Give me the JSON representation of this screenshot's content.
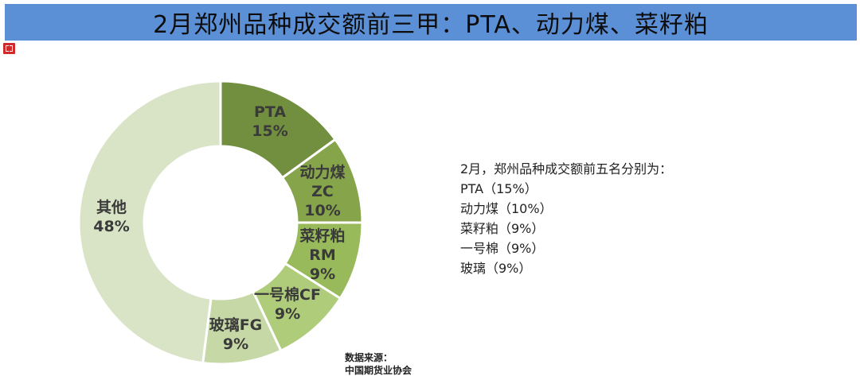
{
  "header": {
    "title": "2月郑州品种成交额前三甲：PTA、动力煤、菜籽粕"
  },
  "logo": {
    "icon": "brand-logo-icon",
    "color": "#d12a2a"
  },
  "chart_data": {
    "type": "pie",
    "donut": true,
    "slices": [
      {
        "label_lines": [
          "PTA",
          "15%"
        ],
        "value": 15,
        "color": "#728f3f"
      },
      {
        "label_lines": [
          "动力煤",
          "ZC",
          "10%"
        ],
        "value": 10,
        "color": "#86a54a"
      },
      {
        "label_lines": [
          "菜籽粕",
          "RM",
          "9%"
        ],
        "value": 9,
        "color": "#98ba5a"
      },
      {
        "label_lines": [
          "一号棉CF",
          "9%"
        ],
        "value": 9,
        "color": "#afcc7a"
      },
      {
        "label_lines": [
          "玻璃FG",
          "9%"
        ],
        "value": 9,
        "color": "#c6d8a6"
      },
      {
        "label_lines": [
          "其他",
          "48%"
        ],
        "value": 48,
        "color": "#d9e4c7"
      }
    ]
  },
  "info": {
    "lines": [
      "2月，郑州品种成交额前五名分别为：",
      "PTA（15%）",
      "动力煤（10%）",
      "菜籽粕（9%）",
      "一号棉（9%）",
      "玻璃（9%）"
    ]
  },
  "source": {
    "line1": "数据来源：",
    "line2": "中国期货业协会"
  }
}
